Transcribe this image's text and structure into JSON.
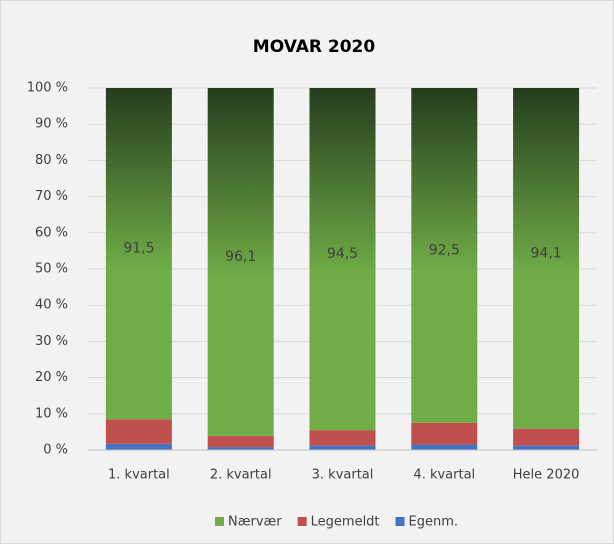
{
  "chart_data": {
    "type": "stacked_bar",
    "title": "MOVAR 2020",
    "categories": [
      "1. kvartal",
      "2. kvartal",
      "3. kvartal",
      "4. kvartal",
      "Hele 2020"
    ],
    "series": [
      {
        "name": "Nærvær",
        "color": "#70ad47",
        "values": [
          91.5,
          96.1,
          94.5,
          92.5,
          94.1
        ],
        "value_labels": [
          "91,5",
          "96,1",
          "94,5",
          "92,5",
          "94,1"
        ]
      },
      {
        "name": "Legemeldt",
        "color": "#c0504d",
        "values": [
          6.8,
          3.1,
          4.3,
          6.0,
          4.7
        ]
      },
      {
        "name": "Egenm.",
        "color": "#4472c4",
        "values": [
          1.7,
          0.8,
          1.2,
          1.5,
          1.2
        ]
      }
    ],
    "stack_order": [
      "Egenm.",
      "Legemeldt",
      "Nærvær"
    ],
    "ylim": [
      0,
      100
    ],
    "yticks": [
      {
        "value": 0,
        "label": "0 %"
      },
      {
        "value": 10,
        "label": "10 %"
      },
      {
        "value": 20,
        "label": "20 %"
      },
      {
        "value": 30,
        "label": "30 %"
      },
      {
        "value": 40,
        "label": "40 %"
      },
      {
        "value": 50,
        "label": "50 %"
      },
      {
        "value": 60,
        "label": "60 %"
      },
      {
        "value": 70,
        "label": "70 %"
      },
      {
        "value": 80,
        "label": "80 %"
      },
      {
        "value": 90,
        "label": "90 %"
      },
      {
        "value": 100,
        "label": "100 %"
      }
    ],
    "grid": true,
    "legend": "bottom"
  }
}
